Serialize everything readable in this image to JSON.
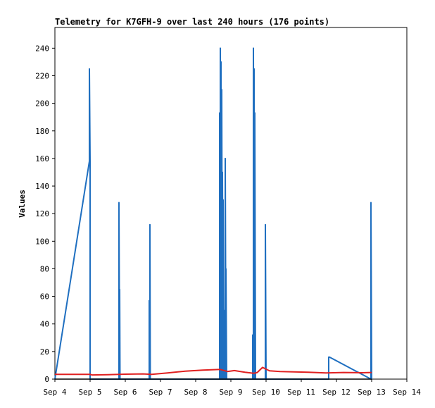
{
  "chart_data": {
    "type": "line",
    "title": "Telemetry for K7GFH-9 over last 240 hours (176 points)",
    "xlabel": "",
    "ylabel": "Values",
    "x_ticks": [
      "Sep 4",
      "Sep 5",
      "Sep 6",
      "Sep 7",
      "Sep 8",
      "Sep 9",
      "Sep 10",
      "Sep 11",
      "Sep 12",
      "Sep 13",
      "Sep 14"
    ],
    "y_ticks": [
      "0",
      "20",
      "40",
      "60",
      "80",
      "100",
      "120",
      "140",
      "160",
      "180",
      "200",
      "220",
      "240"
    ],
    "xlim_days": [
      0,
      10
    ],
    "ylim": [
      0,
      255
    ],
    "grid": false,
    "legend": "none",
    "series": [
      {
        "color": "#1f6fc0",
        "x_days": [
          0.0,
          0.98,
          0.98,
          1.0,
          1.0,
          1.82,
          1.82,
          1.84,
          1.84,
          1.85,
          1.85,
          2.68,
          2.68,
          2.7,
          2.7,
          2.71,
          2.71,
          4.68,
          4.68,
          4.7,
          4.7,
          4.72,
          4.72,
          4.74,
          4.74,
          4.76,
          4.76,
          4.78,
          4.78,
          4.8,
          4.8,
          4.82,
          4.82,
          4.84,
          4.84,
          4.86,
          4.86,
          4.88,
          4.88,
          4.9,
          4.9,
          4.92,
          4.92,
          4.94,
          4.94,
          5.62,
          5.62,
          5.64,
          5.64,
          5.66,
          5.66,
          5.68,
          5.68,
          5.7,
          5.7,
          5.98,
          5.98,
          6.0,
          6.0,
          7.78,
          7.78,
          7.8,
          8.98,
          8.98,
          9.0,
          9.0
        ],
        "y": [
          0,
          158,
          225,
          158,
          0,
          0,
          128,
          0,
          65,
          0,
          0,
          0,
          57,
          0,
          112,
          0,
          0,
          0,
          193,
          0,
          240,
          0,
          230,
          0,
          210,
          0,
          150,
          0,
          130,
          0,
          50,
          0,
          30,
          0,
          160,
          0,
          80,
          0,
          0,
          0,
          0,
          0,
          0,
          0,
          0,
          0,
          32,
          0,
          240,
          0,
          225,
          0,
          193,
          0,
          0,
          0,
          112,
          0,
          0,
          0,
          16,
          16,
          0,
          128,
          0,
          0
        ]
      },
      {
        "color": "#e02020",
        "x_days": [
          0.0,
          0.5,
          1.0,
          1.05,
          1.5,
          2.0,
          2.5,
          2.75,
          3.2,
          3.7,
          4.2,
          4.7,
          4.9,
          5.1,
          5.4,
          5.65,
          5.75,
          5.9,
          6.1,
          6.4,
          6.8,
          7.2,
          7.7,
          8.2,
          8.7,
          9.0
        ],
        "y": [
          3.5,
          3.5,
          3.5,
          3.0,
          3.2,
          3.6,
          3.8,
          3.5,
          4.5,
          5.8,
          6.5,
          7.0,
          5.5,
          6.2,
          5.0,
          4.2,
          4.8,
          8.5,
          6.0,
          5.5,
          5.2,
          5.0,
          4.5,
          4.8,
          4.6,
          4.8
        ]
      },
      {
        "color": "#000000",
        "x_days": [
          0.0,
          9.0
        ],
        "y": [
          0,
          0
        ]
      }
    ]
  }
}
